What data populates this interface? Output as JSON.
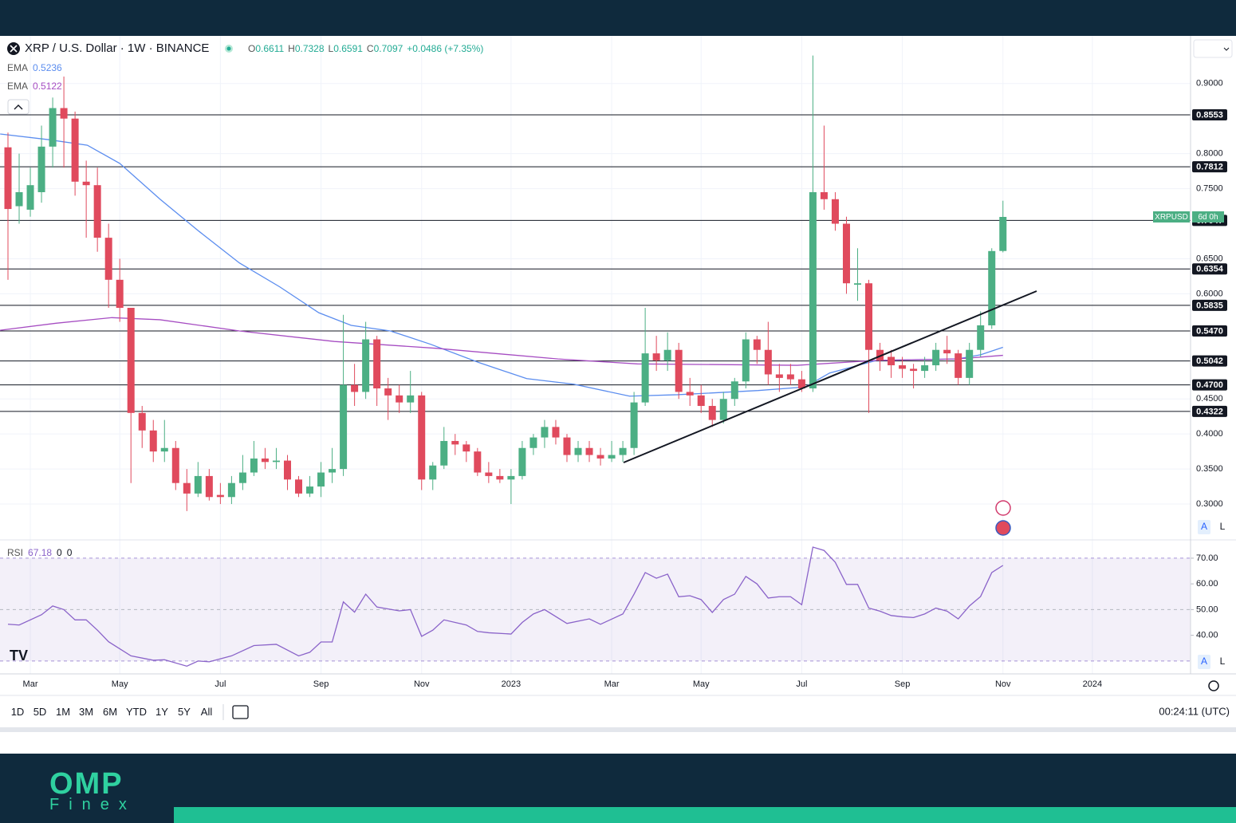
{
  "chart_data": [
    {
      "type": "candlestick",
      "title": "XRP / U.S. Dollar · 1W · BINANCE",
      "ohlc_legend": [
        {
          "label": "O",
          "value": "0.6611"
        },
        {
          "label": "H",
          "value": "0.7328"
        },
        {
          "label": "L",
          "value": "0.6591"
        },
        {
          "label": "C",
          "value": "0.7097"
        }
      ],
      "change": "+0.0486 (+7.35%)",
      "currency": "USD",
      "up_color": "#4caf84",
      "down_color": "#e04a5d",
      "open": [
        0.809,
        0.725,
        0.72,
        0.745,
        0.81,
        0.865,
        0.85,
        0.76,
        0.755,
        0.68,
        0.62,
        0.58,
        0.43,
        0.405,
        0.375,
        0.38,
        0.33,
        0.315,
        0.34,
        0.313,
        0.31,
        0.33,
        0.345,
        0.365,
        0.36,
        0.362,
        0.335,
        0.315,
        0.325,
        0.345,
        0.35,
        0.47,
        0.46,
        0.535,
        0.465,
        0.455,
        0.445,
        0.455,
        0.335,
        0.355,
        0.39,
        0.385,
        0.375,
        0.345,
        0.34,
        0.335,
        0.34,
        0.38,
        0.395,
        0.41,
        0.395,
        0.37,
        0.38,
        0.37,
        0.365,
        0.37,
        0.38,
        0.445,
        0.515,
        0.505,
        0.52,
        0.46,
        0.455,
        0.44,
        0.42,
        0.45,
        0.475,
        0.535,
        0.52,
        0.485,
        0.485,
        0.478,
        0.465,
        0.745,
        0.735,
        0.7,
        0.613,
        0.615,
        0.52,
        0.51,
        0.498,
        0.493,
        0.49,
        0.498,
        0.52,
        0.515,
        0.48,
        0.52,
        0.555,
        0.6611
      ],
      "high": [
        0.83,
        0.8,
        0.78,
        0.84,
        0.88,
        0.91,
        0.86,
        0.79,
        0.78,
        0.7,
        0.65,
        0.58,
        0.44,
        0.42,
        0.42,
        0.39,
        0.35,
        0.36,
        0.35,
        0.33,
        0.34,
        0.37,
        0.39,
        0.38,
        0.38,
        0.37,
        0.34,
        0.34,
        0.36,
        0.38,
        0.57,
        0.5,
        0.56,
        0.54,
        0.48,
        0.47,
        0.49,
        0.46,
        0.36,
        0.41,
        0.4,
        0.39,
        0.38,
        0.36,
        0.35,
        0.35,
        0.39,
        0.4,
        0.42,
        0.42,
        0.4,
        0.39,
        0.39,
        0.38,
        0.39,
        0.39,
        0.46,
        0.58,
        0.54,
        0.545,
        0.53,
        0.48,
        0.47,
        0.45,
        0.46,
        0.48,
        0.545,
        0.54,
        0.56,
        0.5,
        0.5,
        0.49,
        0.94,
        0.84,
        0.745,
        0.71,
        0.665,
        0.62,
        0.53,
        0.52,
        0.51,
        0.5,
        0.51,
        0.53,
        0.54,
        0.52,
        0.53,
        0.575,
        0.665,
        0.7328
      ],
      "low": [
        0.62,
        0.7,
        0.71,
        0.73,
        0.78,
        0.78,
        0.74,
        0.68,
        0.66,
        0.58,
        0.56,
        0.33,
        0.38,
        0.36,
        0.36,
        0.32,
        0.29,
        0.31,
        0.305,
        0.3,
        0.3,
        0.32,
        0.34,
        0.35,
        0.35,
        0.32,
        0.31,
        0.31,
        0.31,
        0.33,
        0.34,
        0.44,
        0.45,
        0.44,
        0.42,
        0.43,
        0.43,
        0.32,
        0.32,
        0.35,
        0.37,
        0.36,
        0.34,
        0.33,
        0.33,
        0.3,
        0.335,
        0.37,
        0.38,
        0.385,
        0.36,
        0.36,
        0.36,
        0.355,
        0.36,
        0.36,
        0.37,
        0.44,
        0.49,
        0.49,
        0.45,
        0.44,
        0.43,
        0.41,
        0.415,
        0.44,
        0.465,
        0.5,
        0.47,
        0.46,
        0.47,
        0.46,
        0.46,
        0.72,
        0.69,
        0.6,
        0.59,
        0.43,
        0.49,
        0.48,
        0.48,
        0.465,
        0.48,
        0.49,
        0.5,
        0.47,
        0.47,
        0.51,
        0.55,
        0.6591
      ],
      "close": [
        0.721,
        0.745,
        0.755,
        0.81,
        0.865,
        0.85,
        0.76,
        0.755,
        0.68,
        0.62,
        0.58,
        0.43,
        0.405,
        0.375,
        0.38,
        0.33,
        0.315,
        0.34,
        0.31,
        0.31,
        0.33,
        0.345,
        0.365,
        0.36,
        0.362,
        0.335,
        0.315,
        0.325,
        0.345,
        0.35,
        0.47,
        0.46,
        0.535,
        0.465,
        0.455,
        0.445,
        0.455,
        0.335,
        0.355,
        0.39,
        0.385,
        0.375,
        0.345,
        0.34,
        0.335,
        0.34,
        0.38,
        0.395,
        0.41,
        0.395,
        0.37,
        0.38,
        0.37,
        0.365,
        0.37,
        0.38,
        0.445,
        0.515,
        0.505,
        0.52,
        0.46,
        0.455,
        0.44,
        0.42,
        0.45,
        0.475,
        0.535,
        0.52,
        0.485,
        0.48,
        0.478,
        0.465,
        0.745,
        0.735,
        0.7,
        0.615,
        0.615,
        0.52,
        0.505,
        0.498,
        0.493,
        0.49,
        0.498,
        0.52,
        0.515,
        0.48,
        0.52,
        0.555,
        0.661,
        0.7097
      ],
      "series": [
        {
          "name": "EMA",
          "value_label": "0.5236",
          "color": "#5b8def",
          "x": [
            -0.7,
            3.6,
            7.1,
            10,
            13.6,
            17.1,
            20.7,
            24.3,
            27.8,
            30.7,
            34.2,
            37.8,
            42.1,
            46.4,
            50.6,
            55.6,
            59.9,
            67.1,
            71.3,
            73.5,
            77.7,
            84.9,
            87,
            89
          ],
          "values": [
            0.828,
            0.82,
            0.812,
            0.786,
            0.735,
            0.689,
            0.644,
            0.61,
            0.573,
            0.555,
            0.547,
            0.528,
            0.502,
            0.479,
            0.471,
            0.454,
            0.456,
            0.462,
            0.467,
            0.487,
            0.505,
            0.507,
            0.513,
            0.5236
          ]
        },
        {
          "name": "EMA",
          "value_label": "0.5122",
          "color": "#a64dc2",
          "x": [
            -0.7,
            4.3,
            9.3,
            13.6,
            20.7,
            29.2,
            38.5,
            49.2,
            56.3,
            70.6,
            77.7,
            84.9,
            89
          ],
          "values": [
            0.548,
            0.558,
            0.566,
            0.563,
            0.547,
            0.532,
            0.522,
            0.507,
            0.5,
            0.498,
            0.505,
            0.507,
            0.5122
          ]
        }
      ],
      "levels": [
        0.8553,
        0.7812,
        0.7047,
        0.6354,
        0.5835,
        {
          "value": 0.547,
          "label": "0.5470"
        },
        0.5042,
        {
          "value": 0.47,
          "label": "0.4700"
        },
        0.4322
      ],
      "price_tag": {
        "symbol": "XRPUSD",
        "countdown": "6d 0h"
      },
      "xlim": [
        -0.713,
        105.78
      ],
      "xticks": [
        {
          "value": 2,
          "label": "Mar"
        },
        {
          "value": 10,
          "label": "May"
        },
        {
          "value": 19,
          "label": "Jul"
        },
        {
          "value": 28,
          "label": "Sep"
        },
        {
          "value": 37,
          "label": "Nov"
        },
        {
          "value": 45,
          "label": "2023"
        },
        {
          "value": 54,
          "label": "Mar"
        },
        {
          "value": 62,
          "label": "May"
        },
        {
          "value": 71,
          "label": "Jul"
        },
        {
          "value": 80,
          "label": "Sep"
        },
        {
          "value": 89,
          "label": "Nov"
        },
        {
          "value": 97,
          "label": "2024"
        }
      ],
      "ylim": [
        0.25,
        0.968
      ],
      "yticks": [
        {
          "value": 0.9,
          "label": "0.9000"
        },
        {
          "value": 0.8,
          "label": "0.8000"
        },
        {
          "value": 0.75,
          "label": "0.7500"
        },
        {
          "value": 0.65,
          "label": "0.6500"
        },
        {
          "value": 0.6,
          "label": "0.6000"
        },
        {
          "value": 0.45,
          "label": "0.4500"
        },
        {
          "value": 0.4,
          "label": "0.4000"
        },
        {
          "value": 0.35,
          "label": "0.3500"
        },
        {
          "value": 0.3,
          "label": "0.3000"
        }
      ],
      "grid": true
    },
    {
      "type": "line",
      "name": "RSI",
      "value_label": "67.18",
      "legend_extra": [
        "0",
        "0"
      ],
      "color": "#8a63c9",
      "x": [
        0,
        1,
        3,
        4,
        5,
        6,
        7,
        8,
        9,
        11,
        13,
        14,
        16,
        17,
        18,
        20,
        22,
        24,
        26,
        27,
        28,
        29,
        30,
        31,
        32,
        33,
        35,
        36,
        37,
        38,
        39,
        41,
        42,
        43,
        45,
        46,
        47,
        48,
        50,
        52,
        53,
        55,
        56,
        57,
        58,
        59,
        60,
        61,
        62,
        63,
        64,
        65,
        66,
        67,
        68,
        69,
        70,
        71,
        72,
        73,
        74,
        75,
        76,
        77,
        78,
        79,
        80,
        81,
        82,
        83,
        84,
        85,
        86,
        87,
        88,
        89
      ],
      "values": [
        44.3,
        44,
        48,
        51.4,
        50,
        46,
        46,
        42,
        37.5,
        32,
        30.3,
        30.5,
        28,
        30,
        29.7,
        32,
        36,
        36.5,
        32,
        33.4,
        37.4,
        37.4,
        53,
        49,
        56,
        51,
        49.5,
        50,
        39.6,
        42,
        46,
        44,
        41.5,
        41,
        40.5,
        45,
        48.3,
        50,
        44.6,
        46.4,
        44.3,
        48.3,
        56,
        64.4,
        62.2,
        63.8,
        55,
        55.4,
        53.9,
        48.9,
        53.9,
        56,
        62.9,
        60,
        54.5,
        55,
        55,
        51.9,
        74.3,
        73,
        68.4,
        59.8,
        59.8,
        50.6,
        49.4,
        47.7,
        47.2,
        46.9,
        48.3,
        50.6,
        49.4,
        46.4,
        51.4,
        55.1,
        64.4,
        67.18
      ],
      "bands": [
        70,
        30
      ],
      "midline": 50,
      "xlim": [
        -0.713,
        105.78
      ],
      "ylim": [
        25,
        76.8
      ],
      "yticks": [
        {
          "value": 70,
          "label": "70.00"
        },
        {
          "value": 60,
          "label": "60.00"
        },
        {
          "value": 50,
          "label": "50.00"
        },
        {
          "value": 40,
          "label": "40.00"
        }
      ]
    }
  ],
  "toolbar": {
    "ranges": [
      "1D",
      "5D",
      "1M",
      "3M",
      "6M",
      "YTD",
      "1Y",
      "5Y",
      "All"
    ],
    "clock": "00:24:11 (UTC)"
  },
  "axis_buttons": [
    "A",
    "L"
  ],
  "brand": {
    "name": "OMP",
    "sub": "Finex"
  }
}
